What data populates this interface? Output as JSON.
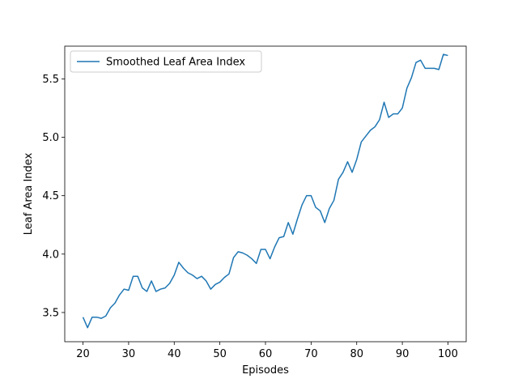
{
  "chart_data": {
    "type": "line",
    "title": "",
    "xlabel": "Episodes",
    "ylabel": "Leaf Area Index",
    "xlim": [
      16,
      104
    ],
    "ylim": [
      3.25,
      5.78
    ],
    "xticks": [
      20,
      30,
      40,
      50,
      60,
      70,
      80,
      90,
      100
    ],
    "yticks": [
      3.5,
      4.0,
      4.5,
      5.0,
      5.5
    ],
    "xtick_labels": [
      "20",
      "30",
      "40",
      "50",
      "60",
      "70",
      "80",
      "90",
      "100"
    ],
    "ytick_labels": [
      "3.5",
      "4.0",
      "4.5",
      "5.0",
      "5.5"
    ],
    "grid": false,
    "legend_position": "upper-left",
    "line_color": "#1f77b4",
    "series": [
      {
        "name": "Smoothed Leaf Area Index",
        "x": [
          20,
          21,
          22,
          23,
          24,
          25,
          26,
          27,
          28,
          29,
          30,
          31,
          32,
          33,
          34,
          35,
          36,
          37,
          38,
          39,
          40,
          41,
          42,
          43,
          44,
          45,
          46,
          47,
          48,
          49,
          50,
          51,
          52,
          53,
          54,
          55,
          56,
          57,
          58,
          59,
          60,
          61,
          62,
          63,
          64,
          65,
          66,
          67,
          68,
          69,
          70,
          71,
          72,
          73,
          74,
          75,
          76,
          77,
          78,
          79,
          80,
          81,
          82,
          83,
          84,
          85,
          86,
          87,
          88,
          89,
          90,
          91,
          92,
          93,
          94,
          95,
          96,
          97,
          98,
          99,
          100
        ],
        "values": [
          3.46,
          3.37,
          3.46,
          3.46,
          3.45,
          3.47,
          3.54,
          3.58,
          3.65,
          3.7,
          3.69,
          3.81,
          3.81,
          3.71,
          3.68,
          3.77,
          3.68,
          3.7,
          3.71,
          3.75,
          3.82,
          3.93,
          3.88,
          3.84,
          3.82,
          3.79,
          3.81,
          3.77,
          3.7,
          3.74,
          3.76,
          3.8,
          3.83,
          3.97,
          4.02,
          4.01,
          3.99,
          3.96,
          3.92,
          4.04,
          4.04,
          3.96,
          4.06,
          4.14,
          4.15,
          4.27,
          4.17,
          4.3,
          4.42,
          4.5,
          4.5,
          4.4,
          4.37,
          4.27,
          4.39,
          4.46,
          4.64,
          4.7,
          4.79,
          4.7,
          4.81,
          4.96,
          5.01,
          5.06,
          5.09,
          5.15,
          5.3,
          5.17,
          5.2,
          5.2,
          5.25,
          5.42,
          5.51,
          5.64,
          5.66,
          5.59,
          5.59,
          5.59,
          5.58,
          5.71,
          5.7
        ]
      }
    ]
  }
}
